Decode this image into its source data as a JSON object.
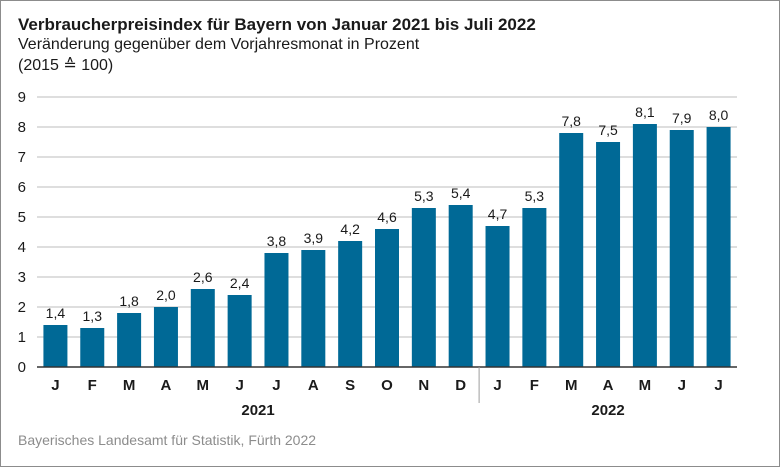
{
  "title": "Verbraucherpreisindex für Bayern von Januar 2021 bis Juli 2022",
  "subtitle": "Veränderung gegenüber dem Vorjahresmonat in Prozent",
  "subtitle2": "(2015 ≙ 100)",
  "source": "Bayerisches Landesamt für Statistik, Fürth 2022",
  "colors": {
    "bar": "#006996",
    "grid": "#bdbdbd",
    "axis": "#333333"
  },
  "chart_data": {
    "type": "bar",
    "categories": [
      "J",
      "F",
      "M",
      "A",
      "M",
      "J",
      "J",
      "A",
      "S",
      "O",
      "N",
      "D",
      "J",
      "F",
      "M",
      "A",
      "M",
      "J",
      "J"
    ],
    "values": [
      1.4,
      1.3,
      1.8,
      2.0,
      2.6,
      2.4,
      3.8,
      3.9,
      4.2,
      4.6,
      5.3,
      5.4,
      4.7,
      5.3,
      7.8,
      7.5,
      8.1,
      7.9,
      8.0
    ],
    "value_labels": [
      "1,4",
      "1,3",
      "1,8",
      "2,0",
      "2,6",
      "2,4",
      "3,8",
      "3,9",
      "4,2",
      "4,6",
      "5,3",
      "5,4",
      "4,7",
      "5,3",
      "7,8",
      "7,5",
      "8,1",
      "7,9",
      "8,0"
    ],
    "year_groups": [
      {
        "label": "2021",
        "count": 12
      },
      {
        "label": "2022",
        "count": 7
      }
    ],
    "ylim": [
      0,
      9
    ],
    "yticks": [
      0,
      1,
      2,
      3,
      4,
      5,
      6,
      7,
      8,
      9
    ],
    "grid": true,
    "xlabel": "",
    "ylabel": ""
  }
}
